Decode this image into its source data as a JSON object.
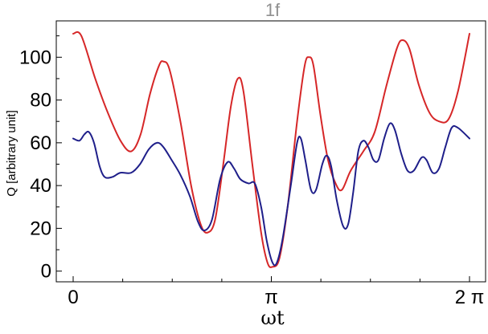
{
  "chart_data": {
    "type": "line",
    "title": "1f",
    "xlabel": "ωt",
    "ylabel": "Q [arbitrary unit]",
    "xlim": [
      0,
      6.2832
    ],
    "ylim": [
      -5,
      117
    ],
    "x_ticks": [
      {
        "value": 0,
        "label": "0"
      },
      {
        "value": 3.1416,
        "label": "π"
      },
      {
        "value": 6.2832,
        "label": "2 π"
      }
    ],
    "y_ticks": [
      {
        "value": 0,
        "label": "0"
      },
      {
        "value": 20,
        "label": "20"
      },
      {
        "value": 40,
        "label": "40"
      },
      {
        "value": 60,
        "label": "60"
      },
      {
        "value": 80,
        "label": "80"
      },
      {
        "value": 100,
        "label": "100"
      }
    ],
    "grid": false,
    "series": [
      {
        "color": "#d62728",
        "points": [
          [
            0.0,
            111
          ],
          [
            0.13,
            110
          ],
          [
            0.35,
            90
          ],
          [
            0.55,
            74
          ],
          [
            0.75,
            61
          ],
          [
            0.92,
            56
          ],
          [
            1.07,
            64
          ],
          [
            1.22,
            83
          ],
          [
            1.36,
            96
          ],
          [
            1.43,
            98
          ],
          [
            1.53,
            94
          ],
          [
            1.7,
            70
          ],
          [
            1.87,
            40
          ],
          [
            2.02,
            22
          ],
          [
            2.13,
            18
          ],
          [
            2.25,
            24
          ],
          [
            2.38,
            50
          ],
          [
            2.5,
            77
          ],
          [
            2.61,
            90
          ],
          [
            2.7,
            84
          ],
          [
            2.84,
            50
          ],
          [
            2.98,
            18
          ],
          [
            3.08,
            4
          ],
          [
            3.16,
            2
          ],
          [
            3.27,
            6
          ],
          [
            3.4,
            30
          ],
          [
            3.55,
            70
          ],
          [
            3.67,
            96
          ],
          [
            3.74,
            100
          ],
          [
            3.81,
            96
          ],
          [
            3.92,
            73
          ],
          [
            4.04,
            52
          ],
          [
            4.16,
            41
          ],
          [
            4.26,
            38
          ],
          [
            4.4,
            47
          ],
          [
            4.6,
            56
          ],
          [
            4.78,
            65
          ],
          [
            4.96,
            86
          ],
          [
            5.13,
            104
          ],
          [
            5.22,
            108
          ],
          [
            5.33,
            104
          ],
          [
            5.48,
            87
          ],
          [
            5.65,
            74
          ],
          [
            5.8,
            70
          ],
          [
            5.95,
            71
          ],
          [
            6.1,
            84
          ],
          [
            6.2832,
            111
          ]
        ]
      },
      {
        "color": "#1f1f8a",
        "points": [
          [
            0.0,
            62
          ],
          [
            0.1,
            61
          ],
          [
            0.18,
            64
          ],
          [
            0.25,
            65
          ],
          [
            0.33,
            60
          ],
          [
            0.42,
            49
          ],
          [
            0.5,
            44
          ],
          [
            0.62,
            44
          ],
          [
            0.75,
            46
          ],
          [
            0.92,
            46
          ],
          [
            1.06,
            50
          ],
          [
            1.2,
            57
          ],
          [
            1.33,
            60
          ],
          [
            1.43,
            58
          ],
          [
            1.56,
            52
          ],
          [
            1.7,
            45
          ],
          [
            1.85,
            35
          ],
          [
            1.98,
            23
          ],
          [
            2.08,
            19
          ],
          [
            2.2,
            24
          ],
          [
            2.33,
            43
          ],
          [
            2.45,
            51
          ],
          [
            2.55,
            48
          ],
          [
            2.65,
            43
          ],
          [
            2.78,
            41
          ],
          [
            2.88,
            41
          ],
          [
            2.98,
            30
          ],
          [
            3.07,
            14
          ],
          [
            3.16,
            4
          ],
          [
            3.23,
            4
          ],
          [
            3.32,
            15
          ],
          [
            3.45,
            40
          ],
          [
            3.55,
            60
          ],
          [
            3.61,
            62
          ],
          [
            3.68,
            52
          ],
          [
            3.77,
            38
          ],
          [
            3.85,
            38
          ],
          [
            3.95,
            50
          ],
          [
            4.02,
            54
          ],
          [
            4.09,
            49
          ],
          [
            4.18,
            33
          ],
          [
            4.28,
            21
          ],
          [
            4.36,
            22
          ],
          [
            4.44,
            37
          ],
          [
            4.52,
            56
          ],
          [
            4.6,
            61
          ],
          [
            4.68,
            58
          ],
          [
            4.76,
            52
          ],
          [
            4.84,
            52
          ],
          [
            4.93,
            62
          ],
          [
            5.02,
            69
          ],
          [
            5.1,
            66
          ],
          [
            5.2,
            55
          ],
          [
            5.3,
            47
          ],
          [
            5.4,
            47
          ],
          [
            5.52,
            53
          ],
          [
            5.6,
            52
          ],
          [
            5.7,
            46
          ],
          [
            5.8,
            48
          ],
          [
            5.9,
            58
          ],
          [
            6.0,
            67
          ],
          [
            6.1,
            67
          ],
          [
            6.2832,
            62
          ]
        ]
      }
    ]
  }
}
